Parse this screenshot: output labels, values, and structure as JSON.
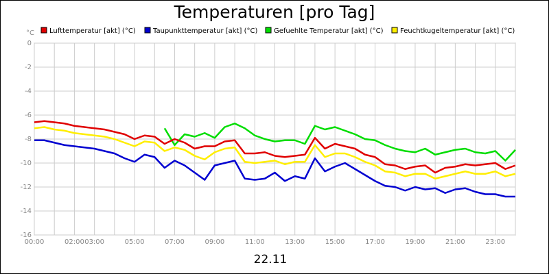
{
  "chart_data": {
    "type": "line",
    "title": "Temperaturen [pro Tag]",
    "y_unit": "°C",
    "x_label": "22.11",
    "x": [
      0,
      0.5,
      1,
      1.5,
      2,
      2.5,
      3,
      3.5,
      4,
      4.5,
      5,
      5.5,
      6,
      6.5,
      7,
      7.5,
      8,
      8.5,
      9,
      9.5,
      10,
      10.5,
      11,
      11.5,
      12,
      12.5,
      13,
      13.5,
      14,
      14.5,
      15,
      15.5,
      16,
      16.5,
      17,
      17.5,
      18,
      18.5,
      19,
      19.5,
      20,
      20.5,
      21,
      21.5,
      22,
      22.5,
      23,
      23.5,
      24
    ],
    "xlim": [
      0,
      24
    ],
    "xticks": [
      {
        "value": 0,
        "label": "00:00"
      },
      {
        "value": 2,
        "label": "02:00"
      },
      {
        "value": 3,
        "label": "03:00"
      },
      {
        "value": 5,
        "label": "05:00"
      },
      {
        "value": 7,
        "label": "07:00"
      },
      {
        "value": 9,
        "label": "09:00"
      },
      {
        "value": 11,
        "label": "11:00"
      },
      {
        "value": 13,
        "label": "13:00"
      },
      {
        "value": 15,
        "label": "15:00"
      },
      {
        "value": 17,
        "label": "17:00"
      },
      {
        "value": 19,
        "label": "19:00"
      },
      {
        "value": 21,
        "label": "21:00"
      },
      {
        "value": 23,
        "label": "23:00"
      }
    ],
    "x_minor_ticks": [
      1,
      4,
      6,
      8,
      10,
      12,
      14,
      16,
      18,
      20,
      22,
      24
    ],
    "ylim": [
      -16,
      0
    ],
    "yticks": [
      0,
      -2,
      -4,
      -6,
      -8,
      -10,
      -12,
      -14,
      -16
    ],
    "grid": true,
    "series": [
      {
        "name": "Lufttemperatur [akt] (°C)",
        "color": "#e00000",
        "values": [
          -6.6,
          -6.5,
          -6.6,
          -6.7,
          -6.9,
          -7.0,
          -7.1,
          -7.2,
          -7.4,
          -7.6,
          -8.0,
          -7.7,
          -7.8,
          -8.4,
          -8.0,
          -8.3,
          -8.8,
          -8.6,
          -8.6,
          -8.2,
          -8.1,
          -9.2,
          -9.2,
          -9.1,
          -9.4,
          -9.5,
          -9.4,
          -9.3,
          -7.9,
          -8.8,
          -8.4,
          -8.6,
          -8.8,
          -9.3,
          -9.5,
          -10.1,
          -10.2,
          -10.5,
          -10.3,
          -10.2,
          -10.8,
          -10.4,
          -10.3,
          -10.1,
          -10.2,
          -10.1,
          -10.0,
          -10.5,
          -10.2
        ]
      },
      {
        "name": "Taupunkttemperatur [akt] (°C)",
        "color": "#0000d0",
        "values": [
          -8.1,
          -8.1,
          -8.3,
          -8.5,
          -8.6,
          -8.7,
          -8.8,
          -9.0,
          -9.2,
          -9.6,
          -9.9,
          -9.3,
          -9.5,
          -10.4,
          -9.8,
          -10.2,
          -10.8,
          -11.4,
          -10.2,
          -10.0,
          -9.8,
          -11.3,
          -11.4,
          -11.3,
          -10.8,
          -11.5,
          -11.1,
          -11.3,
          -9.6,
          -10.7,
          -10.3,
          -10.0,
          -10.5,
          -11.0,
          -11.5,
          -11.9,
          -12.0,
          -12.3,
          -12.0,
          -12.2,
          -12.1,
          -12.5,
          -12.2,
          -12.1,
          -12.4,
          -12.6,
          -12.6,
          -12.8,
          -12.8
        ]
      },
      {
        "name": "Gefuehlte Temperatur [akt] (°C)",
        "color": "#00dd00",
        "values": [
          null,
          null,
          null,
          null,
          null,
          null,
          null,
          null,
          null,
          null,
          null,
          null,
          null,
          -7.1,
          -8.5,
          -7.6,
          -7.8,
          -7.5,
          -7.9,
          -7.0,
          -6.7,
          -7.1,
          -7.7,
          -8.0,
          -8.2,
          -8.1,
          -8.1,
          -8.4,
          -6.9,
          -7.2,
          -7.0,
          -7.3,
          -7.6,
          -8.0,
          -8.1,
          -8.5,
          -8.8,
          -9.0,
          -9.1,
          -8.8,
          -9.3,
          -9.1,
          -8.9,
          -8.8,
          -9.1,
          -9.2,
          -9.0,
          -9.8,
          -8.9
        ]
      },
      {
        "name": "Feuchtkugeltemperatur [akt] (°C)",
        "color": "#ffee00",
        "values": [
          -7.1,
          -7.0,
          -7.2,
          -7.3,
          -7.5,
          -7.6,
          -7.7,
          -7.8,
          -8.0,
          -8.3,
          -8.6,
          -8.2,
          -8.3,
          -9.0,
          -8.7,
          -8.9,
          -9.4,
          -9.7,
          -9.1,
          -8.8,
          -8.7,
          -9.9,
          -10.0,
          -9.9,
          -9.8,
          -10.1,
          -9.9,
          -9.9,
          -8.5,
          -9.5,
          -9.2,
          -9.2,
          -9.5,
          -9.9,
          -10.2,
          -10.7,
          -10.8,
          -11.1,
          -10.9,
          -10.9,
          -11.3,
          -11.1,
          -10.9,
          -10.7,
          -10.9,
          -10.9,
          -10.7,
          -11.1,
          -10.9
        ]
      }
    ]
  }
}
